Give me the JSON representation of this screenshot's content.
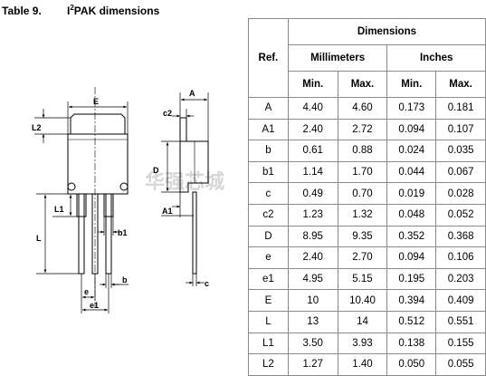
{
  "caption": {
    "number": "Table 9.",
    "title_superscript_prefix": "I",
    "title_superscript": "2",
    "title_rest": "PAK dimensions"
  },
  "table": {
    "ref_header": "Ref.",
    "dimensions_header": "Dimensions",
    "unit_headers": [
      "Millimeters",
      "Inches"
    ],
    "minmax_headers": [
      "Min.",
      "Max.",
      "Min.",
      "Max."
    ],
    "rows": [
      {
        "ref": "A",
        "mm_min": "4.40",
        "mm_max": "4.60",
        "in_min": "0.173",
        "in_max": "0.181"
      },
      {
        "ref": "A1",
        "mm_min": "2.40",
        "mm_max": "2.72",
        "in_min": "0.094",
        "in_max": "0.107"
      },
      {
        "ref": "b",
        "mm_min": "0.61",
        "mm_max": "0.88",
        "in_min": "0.024",
        "in_max": "0.035"
      },
      {
        "ref": "b1",
        "mm_min": "1.14",
        "mm_max": "1.70",
        "in_min": "0.044",
        "in_max": "0.067"
      },
      {
        "ref": "c",
        "mm_min": "0.49",
        "mm_max": "0.70",
        "in_min": "0.019",
        "in_max": "0.028"
      },
      {
        "ref": "c2",
        "mm_min": "1.23",
        "mm_max": "1.32",
        "in_min": "0.048",
        "in_max": "0.052"
      },
      {
        "ref": "D",
        "mm_min": "8.95",
        "mm_max": "9.35",
        "in_min": "0.352",
        "in_max": "0.368"
      },
      {
        "ref": "e",
        "mm_min": "2.40",
        "mm_max": "2.70",
        "in_min": "0.094",
        "in_max": "0.106"
      },
      {
        "ref": "e1",
        "mm_min": "4.95",
        "mm_max": "5.15",
        "in_min": "0.195",
        "in_max": "0.203"
      },
      {
        "ref": "E",
        "mm_min": "10",
        "mm_max": "10.40",
        "in_min": "0.394",
        "in_max": "0.409"
      },
      {
        "ref": "L",
        "mm_min": "13",
        "mm_max": "14",
        "in_min": "0.512",
        "in_max": "0.551"
      },
      {
        "ref": "L1",
        "mm_min": "3.50",
        "mm_max": "3.93",
        "in_min": "0.138",
        "in_max": "0.155"
      },
      {
        "ref": "L2",
        "mm_min": "1.27",
        "mm_max": "1.40",
        "in_min": "0.050",
        "in_max": "0.055"
      }
    ]
  },
  "drawing": {
    "labels": {
      "E": "E",
      "L2": "L2",
      "L1": "L1",
      "L": "L",
      "b1": "b1",
      "b": "b",
      "e": "e",
      "e1": "e1",
      "A": "A",
      "c2": "c2",
      "D": "D",
      "A1": "A1",
      "c": "c"
    },
    "watermark": "华强芯城",
    "colors": {
      "line": "#000000",
      "dim": "#333333",
      "grid": "#8a8a8a",
      "watermark": "#d7d7d7"
    }
  }
}
